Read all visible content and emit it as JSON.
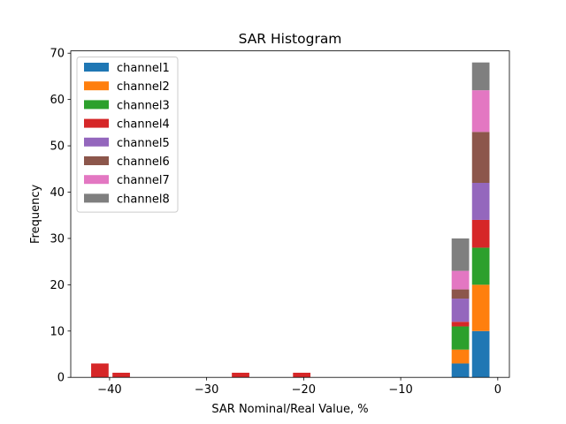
{
  "chart_data": {
    "type": "bar",
    "stacked": true,
    "title": "SAR Histogram",
    "xlabel": "SAR Nominal/Real Value, %",
    "ylabel": "Frequency",
    "xlim": [
      -44,
      1.2
    ],
    "ylim": [
      0,
      70.5
    ],
    "xticks": [
      -40,
      -30,
      -20,
      -10,
      0
    ],
    "xtick_labels": [
      "−40",
      "−30",
      "−20",
      "−10",
      "0"
    ],
    "yticks": [
      0,
      10,
      20,
      30,
      40,
      50,
      60,
      70
    ],
    "ytick_labels": [
      "0",
      "10",
      "20",
      "30",
      "40",
      "50",
      "60",
      "70"
    ],
    "bin_width": 1.8,
    "bins": [
      -41,
      -38.8,
      -26.5,
      -20.2,
      -3.85,
      -1.75
    ],
    "legend_position": "top-left",
    "series": [
      {
        "name": "channel1",
        "color": "#1f77b4",
        "values": [
          0,
          0,
          0,
          0,
          3,
          10
        ]
      },
      {
        "name": "channel2",
        "color": "#ff7f0e",
        "values": [
          0,
          0,
          0,
          0,
          3,
          10
        ]
      },
      {
        "name": "channel3",
        "color": "#2ca02c",
        "values": [
          0,
          0,
          0,
          0,
          5,
          8
        ]
      },
      {
        "name": "channel4",
        "color": "#d62728",
        "values": [
          3,
          1,
          1,
          1,
          1,
          6
        ]
      },
      {
        "name": "channel5",
        "color": "#9467bd",
        "values": [
          0,
          0,
          0,
          0,
          5,
          8
        ]
      },
      {
        "name": "channel6",
        "color": "#8c564b",
        "values": [
          0,
          0,
          0,
          0,
          2,
          11
        ]
      },
      {
        "name": "channel7",
        "color": "#e377c2",
        "values": [
          0,
          0,
          0,
          0,
          4,
          9
        ]
      },
      {
        "name": "channel8",
        "color": "#7f7f7f",
        "values": [
          0,
          0,
          0,
          0,
          7,
          6
        ]
      }
    ]
  }
}
